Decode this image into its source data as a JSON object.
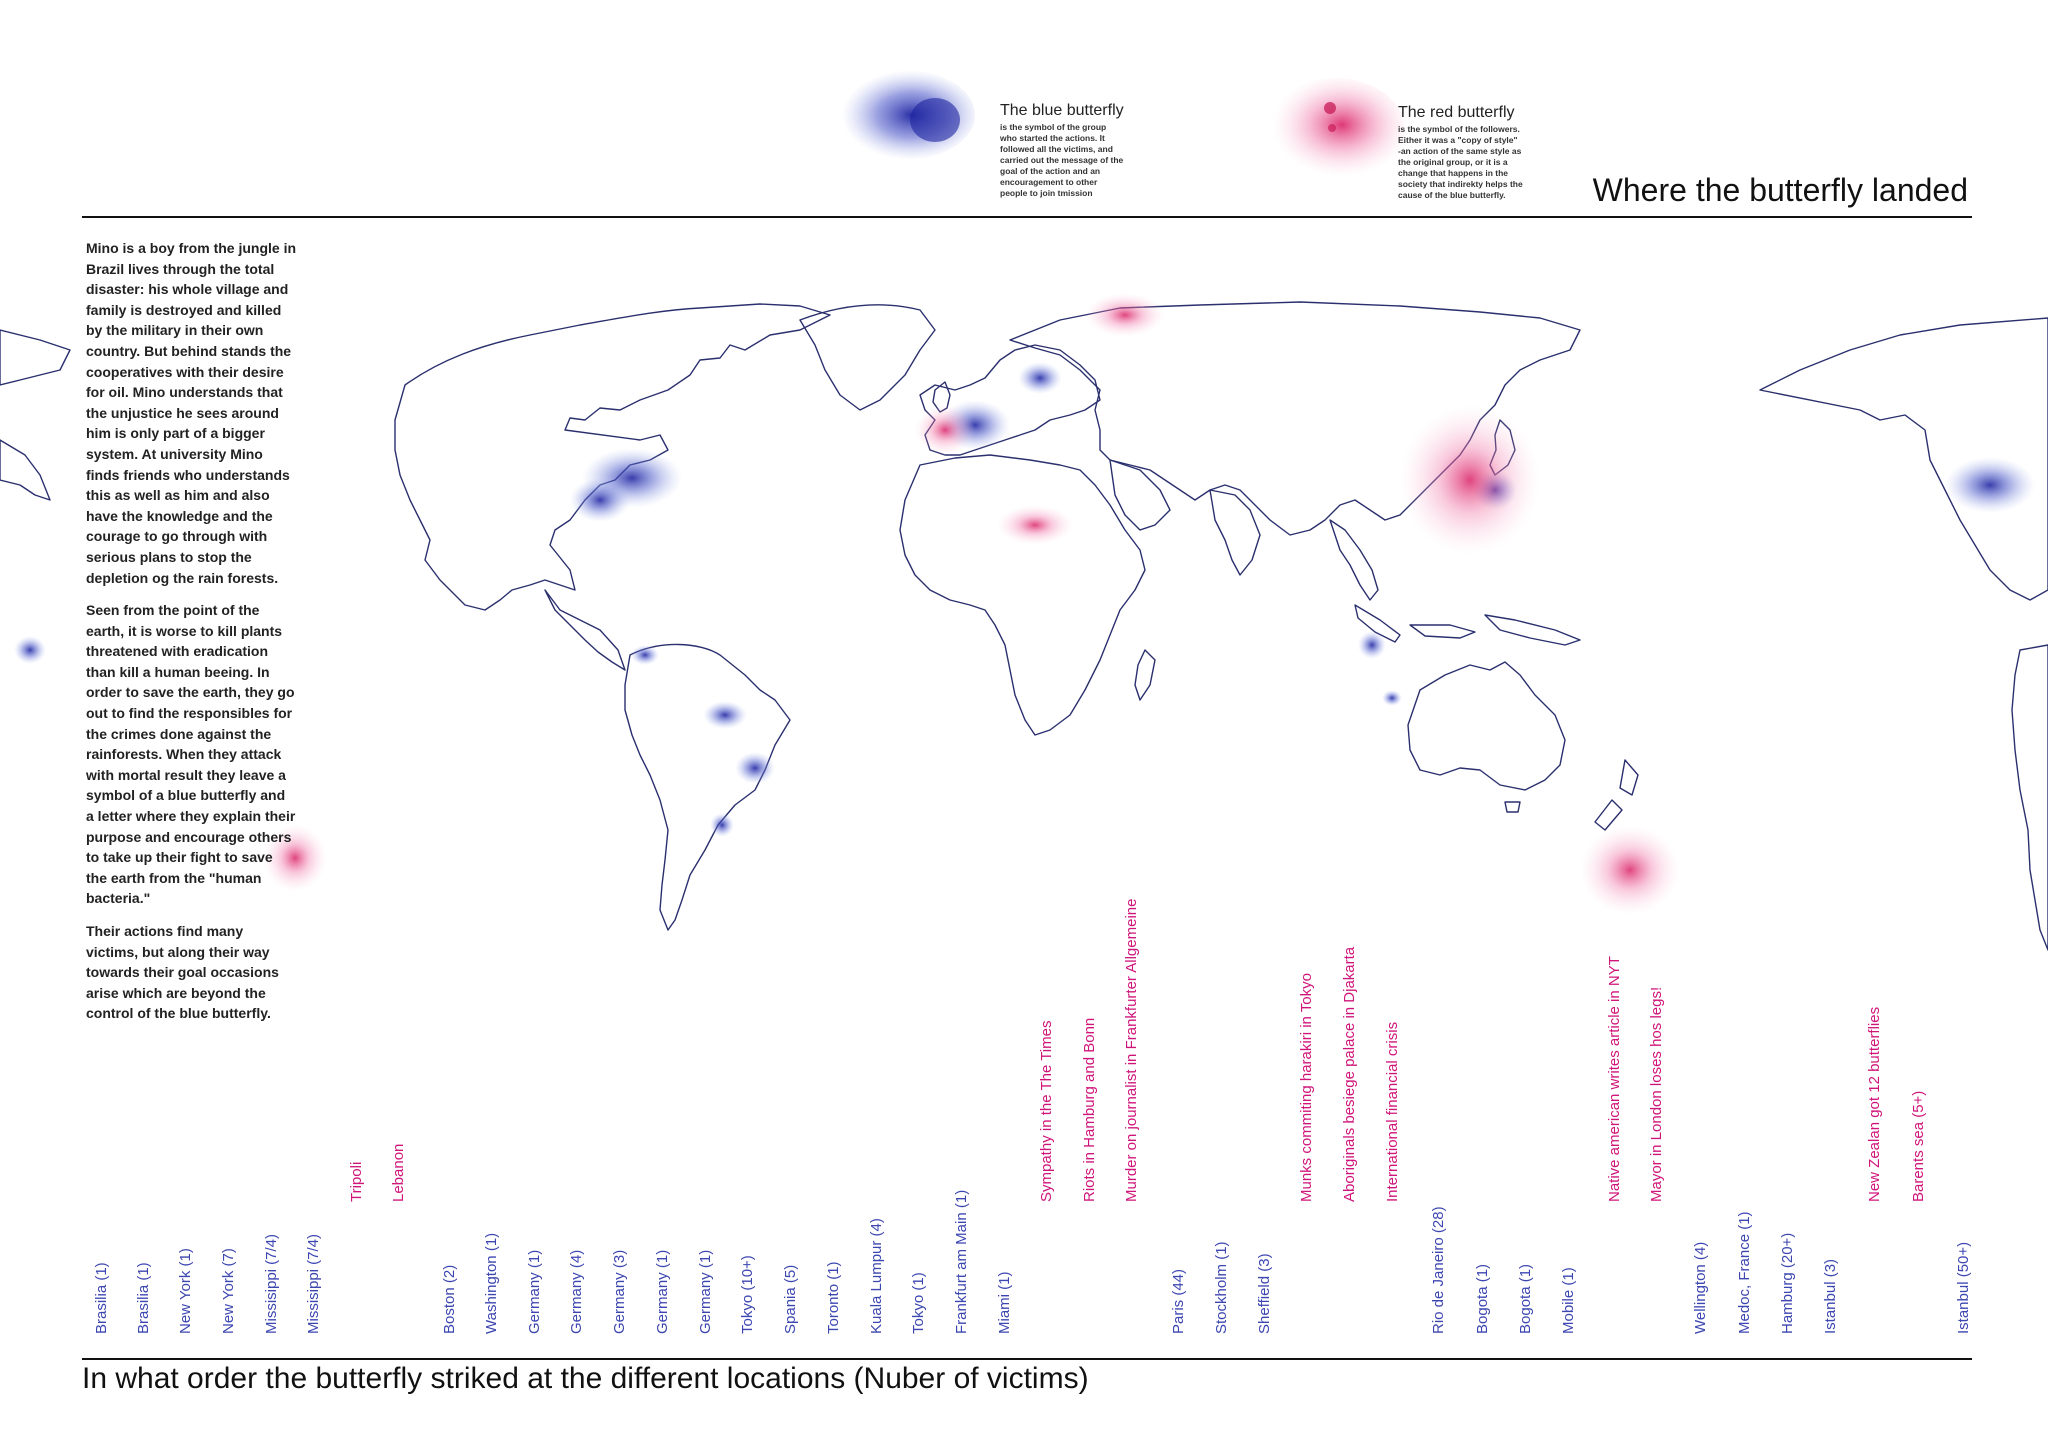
{
  "title": "Where the butterfly landed",
  "legend": {
    "blue": {
      "title": "The blue butterfly",
      "lines": [
        "is the symbol of the group",
        "who started the actions. It",
        "followed all the victims, and",
        "carried out the message of the",
        "goal of the action and an",
        "encouragement to other",
        "people to join tmission"
      ],
      "color": "#2e35a8"
    },
    "red": {
      "title": "The red butterfly",
      "lines": [
        "is the symbol of the followers.",
        "Either it was a \"copy of style\"",
        "-an action of the same style as",
        "the original group, or it is a",
        "change that happens in the",
        "society that indirekty helps the",
        "cause of the blue butterfly."
      ],
      "color": "#d8165f"
    }
  },
  "story": [
    "Mino is a boy from the jungle in Brazil lives through the total disaster: his whole village and family is destroyed and killed by the military in their own country. But behind stands the cooperatives with their desire for oil. Mino understands that the unjustice he sees around him is only part of a bigger system.  At university Mino finds friends who understands this as well as him and also have the knowledge and the courage to go through with serious plans to stop the depletion og the rain forests.",
    "Seen from the point of the earth, it is worse to kill plants threatened with eradication than kill a human beeing. In order to save the earth, they go out to find the responsibles for the crimes done against the rainforests. When they attack with mortal result they leave a symbol of a blue butterfly and a letter where they explain their purpose and encourage others to take up their fight to save the earth from the \"human bacteria.\"",
    "Their actions find many victims, but along their way towards their goal occasions arise which are beyond the control of the blue butterfly."
  ],
  "timeline": [
    {
      "label": "Brasilia (1)",
      "type": "blue"
    },
    {
      "label": "Brasilia (1)",
      "type": "blue"
    },
    {
      "label": "New York (1)",
      "type": "blue"
    },
    {
      "label": "New York (7)",
      "type": "blue"
    },
    {
      "label": "Missisippi (7/4)",
      "type": "blue"
    },
    {
      "label": "Missisippi (7/4)",
      "type": "blue"
    },
    {
      "label": "Tripoli",
      "type": "pink"
    },
    {
      "label": "Lebanon",
      "type": "pink"
    },
    {
      "label": "Boston (2)",
      "type": "blue"
    },
    {
      "label": "Washington (1)",
      "type": "blue"
    },
    {
      "label": "Germany (1)",
      "type": "blue"
    },
    {
      "label": "Germany (4)",
      "type": "blue"
    },
    {
      "label": "Germany (3)",
      "type": "blue"
    },
    {
      "label": "Germany (1)",
      "type": "blue"
    },
    {
      "label": "Germany (1)",
      "type": "blue"
    },
    {
      "label": "Tokyo (10+)",
      "type": "blue"
    },
    {
      "label": "Spania (5)",
      "type": "blue"
    },
    {
      "label": "Toronto (1)",
      "type": "blue"
    },
    {
      "label": "Kuala Lumpur (4)",
      "type": "blue"
    },
    {
      "label": "Tokyo (1)",
      "type": "blue"
    },
    {
      "label": "Frankfurt am Main (1)",
      "type": "blue"
    },
    {
      "label": "Miami (1)",
      "type": "blue"
    },
    {
      "label": "Sympathy in the The Times",
      "type": "pink"
    },
    {
      "label": "Riots in Hamburg and Bonn",
      "type": "pink"
    },
    {
      "label": "Murder on journalist in Frankfurter Allgemeine",
      "type": "pink"
    },
    {
      "label": "Paris (44)",
      "type": "blue"
    },
    {
      "label": "Stockholm (1)",
      "type": "blue"
    },
    {
      "label": "Sheffield (3)",
      "type": "blue"
    },
    {
      "label": "Munks commiting harakiri in Tokyo",
      "type": "pink"
    },
    {
      "label": "Aboriginals besiege palace in Djakarta",
      "type": "pink"
    },
    {
      "label": "International financial crisis",
      "type": "pink"
    },
    {
      "label": "Rio de Janeiro (28)",
      "type": "blue"
    },
    {
      "label": "Bogota (1)",
      "type": "blue"
    },
    {
      "label": "Bogota (1)",
      "type": "blue"
    },
    {
      "label": "Mobile (1)",
      "type": "blue"
    },
    {
      "label": "Native american writes article in NYT",
      "type": "pink"
    },
    {
      "label": "Mayor in London loses hos legs!",
      "type": "pink"
    },
    {
      "label": "Wellington (4)",
      "type": "blue"
    },
    {
      "label": "Medoc, France (1)",
      "type": "blue"
    },
    {
      "label": "Hamburg (20+)",
      "type": "blue"
    },
    {
      "label": "Istanbul (3)",
      "type": "blue"
    },
    {
      "label": "New Zealan got 12 butterflies",
      "type": "pink"
    },
    {
      "label": "Barents sea (5+)",
      "type": "pink"
    },
    {
      "label": "Istanbul (50+)",
      "type": "blue"
    }
  ],
  "timeline_title": "In what order the butterfly striked at the different locations (Nuber of victims)",
  "colors": {
    "blue": "#3c46b0",
    "pink": "#d0157a",
    "outline": "#2a2f6e"
  }
}
